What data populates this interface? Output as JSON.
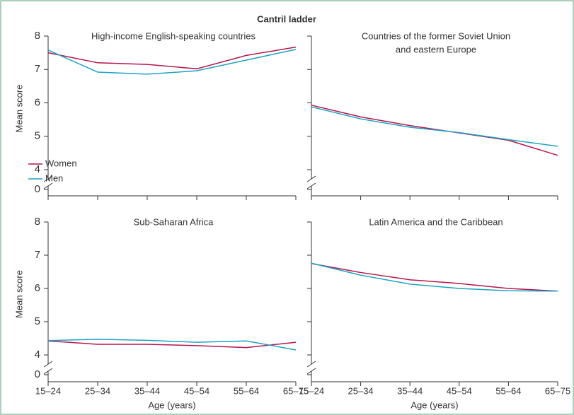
{
  "title": "Cantril ladder",
  "chart_data": [
    {
      "type": "line",
      "title": "High-income English-speaking countries",
      "ylabel": "Mean score",
      "ylim": [
        4,
        8
      ],
      "yticks": [
        0,
        4,
        5,
        6,
        7,
        8
      ],
      "axis_break": true,
      "legend": "lower left",
      "series": [
        {
          "name": "Women",
          "color": "#b5174a",
          "values": [
            7.5,
            7.2,
            7.15,
            7.02,
            7.42,
            7.67
          ]
        },
        {
          "name": "Men",
          "color": "#1ba3c6",
          "values": [
            7.58,
            6.92,
            6.86,
            6.96,
            7.28,
            7.6
          ]
        }
      ]
    },
    {
      "type": "line",
      "title": [
        "Countries of the former Soviet Union",
        "and eastern Europe"
      ],
      "ylim": [
        4,
        8
      ],
      "yticks": [
        0,
        4,
        5,
        6,
        7,
        8
      ],
      "axis_break": true,
      "series": [
        {
          "color": "#b5174a",
          "values": [
            5.93,
            5.58,
            5.32,
            5.1,
            4.88,
            4.43
          ]
        },
        {
          "color": "#1ba3c6",
          "values": [
            5.88,
            5.52,
            5.27,
            5.11,
            4.9,
            4.7
          ]
        }
      ]
    },
    {
      "type": "line",
      "title": "Sub-Saharan Africa",
      "ylabel": "Mean score",
      "xlabel": "Age (years)",
      "categories": [
        "15–24",
        "25–34",
        "35–44",
        "45–54",
        "55–64",
        "65–75"
      ],
      "ylim": [
        4,
        8
      ],
      "yticks": [
        0,
        4,
        5,
        6,
        7,
        8
      ],
      "axis_break": true,
      "series": [
        {
          "color": "#b5174a",
          "values": [
            4.42,
            4.32,
            4.32,
            4.28,
            4.22,
            4.38
          ]
        },
        {
          "color": "#1ba3c6",
          "values": [
            4.43,
            4.47,
            4.44,
            4.38,
            4.42,
            4.15
          ]
        }
      ]
    },
    {
      "type": "line",
      "title": "Latin America and the Caribbean",
      "xlabel": "Age (years)",
      "categories": [
        "15–24",
        "25–34",
        "35–44",
        "45–54",
        "55–64",
        "65–75"
      ],
      "ylim": [
        4,
        8
      ],
      "yticks": [
        0,
        4,
        5,
        6,
        7,
        8
      ],
      "axis_break": true,
      "series": [
        {
          "color": "#b5174a",
          "values": [
            6.75,
            6.48,
            6.26,
            6.15,
            6.0,
            5.92
          ]
        },
        {
          "color": "#1ba3c6",
          "values": [
            6.76,
            6.4,
            6.13,
            6.0,
            5.93,
            5.92
          ]
        }
      ]
    }
  ]
}
